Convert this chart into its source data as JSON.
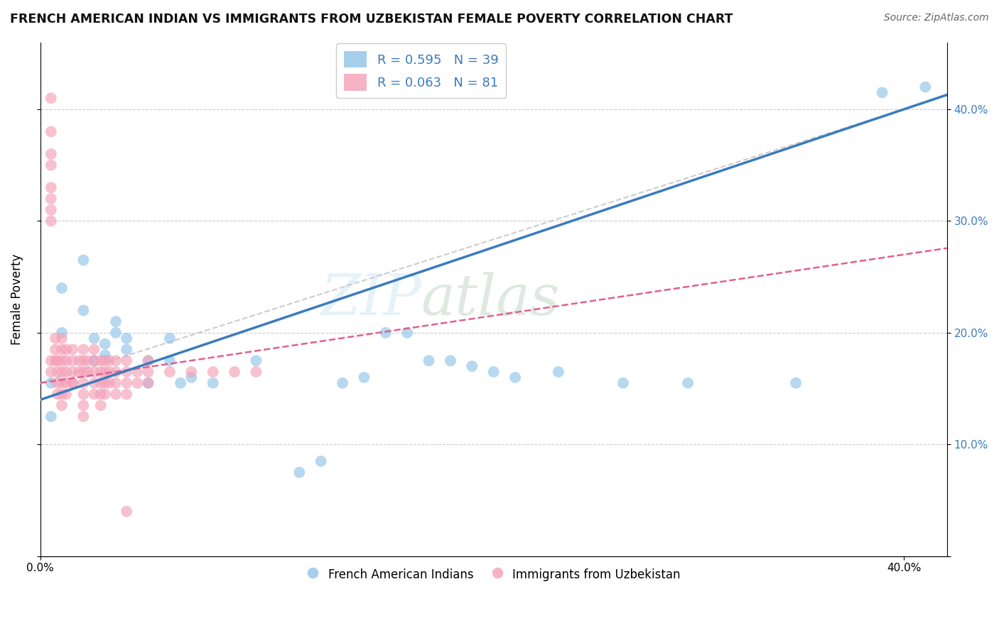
{
  "title": "FRENCH AMERICAN INDIAN VS IMMIGRANTS FROM UZBEKISTAN FEMALE POVERTY CORRELATION CHART",
  "source": "Source: ZipAtlas.com",
  "ylabel": "Female Poverty",
  "x_range": [
    0.0,
    0.42
  ],
  "y_range": [
    0.0,
    0.46
  ],
  "legend1_R": "0.595",
  "legend1_N": "39",
  "legend2_R": "0.063",
  "legend2_N": "81",
  "blue_color": "#90c4e8",
  "pink_color": "#f4a0b8",
  "blue_line_color": "#3a7bbf",
  "pink_line_color": "#e06090",
  "dashed_line_color": "#c0c0c0",
  "watermark_zip": "ZIP",
  "watermark_atlas": "atlas",
  "blue_scatter_x": [
    0.005,
    0.005,
    0.01,
    0.01,
    0.02,
    0.02,
    0.025,
    0.025,
    0.03,
    0.03,
    0.035,
    0.035,
    0.04,
    0.04,
    0.05,
    0.05,
    0.06,
    0.06,
    0.065,
    0.07,
    0.08,
    0.1,
    0.12,
    0.13,
    0.14,
    0.15,
    0.16,
    0.17,
    0.18,
    0.19,
    0.2,
    0.21,
    0.22,
    0.24,
    0.27,
    0.3,
    0.35,
    0.39,
    0.41
  ],
  "blue_scatter_y": [
    0.155,
    0.125,
    0.24,
    0.2,
    0.265,
    0.22,
    0.195,
    0.175,
    0.18,
    0.19,
    0.2,
    0.21,
    0.195,
    0.185,
    0.175,
    0.155,
    0.175,
    0.195,
    0.155,
    0.16,
    0.155,
    0.175,
    0.075,
    0.085,
    0.155,
    0.16,
    0.2,
    0.2,
    0.175,
    0.175,
    0.17,
    0.165,
    0.16,
    0.165,
    0.155,
    0.155,
    0.155,
    0.415,
    0.42
  ],
  "pink_scatter_x": [
    0.005,
    0.005,
    0.005,
    0.005,
    0.005,
    0.005,
    0.005,
    0.005,
    0.005,
    0.005,
    0.007,
    0.007,
    0.007,
    0.008,
    0.008,
    0.008,
    0.008,
    0.01,
    0.01,
    0.01,
    0.01,
    0.01,
    0.01,
    0.01,
    0.012,
    0.012,
    0.012,
    0.012,
    0.012,
    0.015,
    0.015,
    0.015,
    0.015,
    0.018,
    0.018,
    0.02,
    0.02,
    0.02,
    0.02,
    0.02,
    0.02,
    0.022,
    0.022,
    0.025,
    0.025,
    0.025,
    0.025,
    0.025,
    0.028,
    0.028,
    0.028,
    0.028,
    0.028,
    0.03,
    0.03,
    0.03,
    0.03,
    0.032,
    0.032,
    0.032,
    0.035,
    0.035,
    0.035,
    0.035,
    0.04,
    0.04,
    0.04,
    0.04,
    0.045,
    0.045,
    0.05,
    0.05,
    0.05,
    0.06,
    0.07,
    0.08,
    0.09,
    0.1,
    0.015,
    0.02,
    0.04
  ],
  "pink_scatter_y": [
    0.41,
    0.38,
    0.36,
    0.35,
    0.33,
    0.32,
    0.31,
    0.3,
    0.175,
    0.165,
    0.195,
    0.185,
    0.175,
    0.175,
    0.165,
    0.155,
    0.145,
    0.195,
    0.185,
    0.175,
    0.165,
    0.155,
    0.145,
    0.135,
    0.185,
    0.175,
    0.165,
    0.155,
    0.145,
    0.185,
    0.175,
    0.165,
    0.155,
    0.175,
    0.165,
    0.185,
    0.175,
    0.165,
    0.155,
    0.145,
    0.135,
    0.175,
    0.165,
    0.185,
    0.175,
    0.165,
    0.155,
    0.145,
    0.175,
    0.165,
    0.155,
    0.145,
    0.135,
    0.175,
    0.165,
    0.155,
    0.145,
    0.175,
    0.165,
    0.155,
    0.175,
    0.165,
    0.155,
    0.145,
    0.175,
    0.165,
    0.155,
    0.145,
    0.165,
    0.155,
    0.175,
    0.165,
    0.155,
    0.165,
    0.165,
    0.165,
    0.165,
    0.165,
    0.155,
    0.125,
    0.04
  ]
}
